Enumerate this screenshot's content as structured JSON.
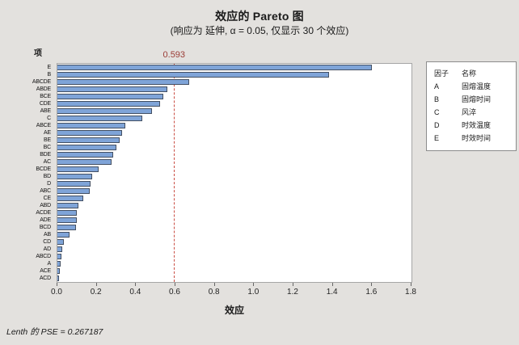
{
  "title": "效应的 Pareto 图",
  "subtitle": "(响应为 延伸, α = 0.05, 仅显示 30 个效应)",
  "axes": {
    "y_title": "项",
    "x_title": "效应"
  },
  "reference_line": {
    "value": 0.593,
    "label": "0.593"
  },
  "footer": "Lenth 的 PSE = 0.267187",
  "legend": {
    "col1_header": "因子",
    "col2_header": "名称",
    "entries": [
      {
        "factor": "A",
        "name": "固熔温度"
      },
      {
        "factor": "B",
        "name": "固熔时间"
      },
      {
        "factor": "C",
        "name": "风淬"
      },
      {
        "factor": "D",
        "name": "时效温度"
      },
      {
        "factor": "E",
        "name": "时效时间"
      }
    ]
  },
  "colors": {
    "bg": "#e3e1de",
    "plot_bg": "#ffffff",
    "bar_fill": "#7fa4d8",
    "bar_border": "#445063",
    "ref_line": "#ca4e44",
    "ref_label": "#9a3b35",
    "frame": "#a6a6a6",
    "tick": "#666666"
  },
  "chart_data": {
    "type": "bar",
    "orientation": "horizontal",
    "title": "效应的 Pareto 图",
    "subtitle": "(响应为 延伸, α = 0.05, 仅显示 30 个效应)",
    "xlabel": "效应",
    "ylabel": "项",
    "xlim": [
      0,
      1.8
    ],
    "xticks": [
      0.0,
      0.2,
      0.4,
      0.6,
      0.8,
      1.0,
      1.2,
      1.4,
      1.6,
      1.8
    ],
    "reference_value": 0.593,
    "categories": [
      "E",
      "B",
      "ABCDE",
      "ABDE",
      "BCE",
      "CDE",
      "ABE",
      "C",
      "ABCE",
      "AE",
      "BE",
      "BC",
      "BDE",
      "AC",
      "BCDE",
      "BD",
      "D",
      "ABC",
      "CE",
      "ABD",
      "ACDE",
      "ADE",
      "BCD",
      "AB",
      "CD",
      "AD",
      "ABCD",
      "A",
      "ACE",
      "ACD"
    ],
    "values": [
      1.6,
      1.38,
      0.67,
      0.56,
      0.54,
      0.52,
      0.48,
      0.43,
      0.345,
      0.33,
      0.315,
      0.3,
      0.285,
      0.275,
      0.21,
      0.175,
      0.17,
      0.165,
      0.13,
      0.105,
      0.1,
      0.098,
      0.095,
      0.062,
      0.034,
      0.026,
      0.021,
      0.016,
      0.012,
      0.008
    ],
    "legend_note": "Pareto chart of standardized effects with significance threshold 0.593 (Lenth PSE = 0.267187)"
  }
}
